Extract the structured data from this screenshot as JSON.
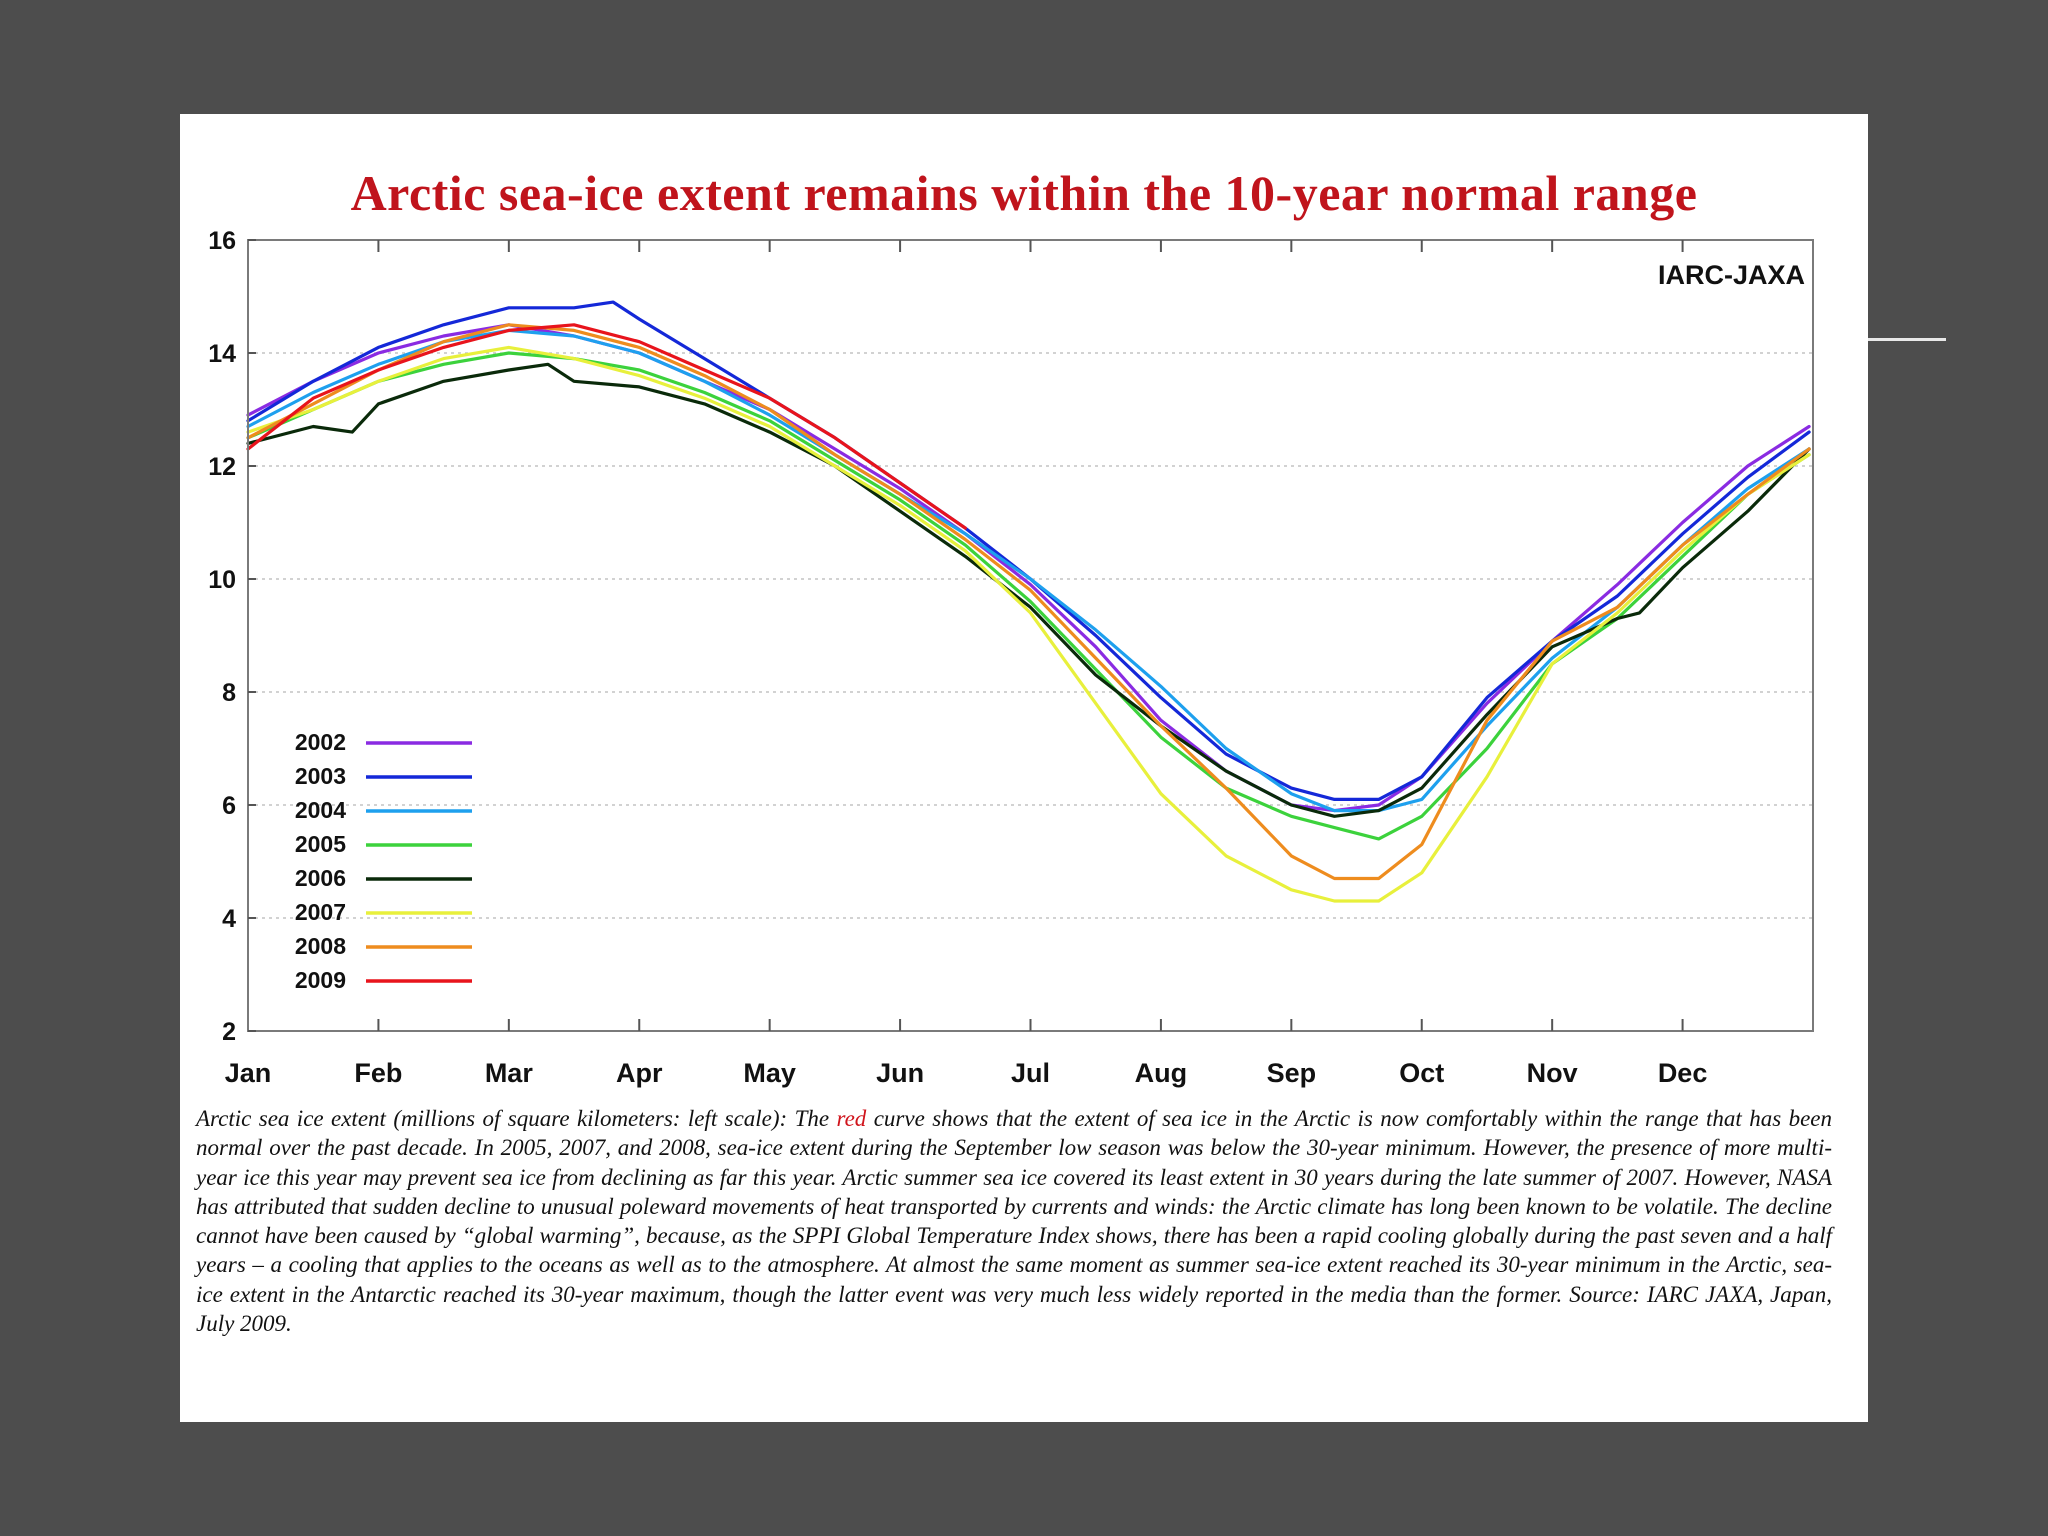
{
  "caption": {
    "part1": "Arctic sea ice extent (millions of square kilometers: left scale): The ",
    "highlight": "red",
    "part2": " curve shows that the extent of sea ice in the Arctic is now comfortably within the range that has been normal over the past decade. In 2005, 2007, and 2008, sea-ice extent during the September low season was below the 30-year minimum. However, the presence of more multi-year ice this year may prevent sea ice from declining as far this year. Arctic summer sea ice covered its least extent in 30 years during the late summer of 2007. However, NASA has attributed that sudden decline to unusual poleward movements of heat transported by currents and winds: the Arctic climate has long been known to be volatile. The decline cannot have been caused by “global warming”, because, as the SPPI Global Temperature Index shows, there has been a rapid cooling globally during the past seven and a half years – a cooling that applies to the oceans as well as to the atmosphere. At almost the same moment as summer sea-ice extent reached its 30-year minimum in the Arctic, sea-ice extent in the Antarctic reached its 30-year maximum, though the latter event was very much less widely reported in the media than the former. Source: IARC JAXA, Japan, July 2009.",
    "highlight_color": "#d0141c"
  },
  "chart_data": {
    "type": "line",
    "title": "Arctic sea-ice extent remains within the 10-year normal range",
    "source_label": "IARC-JAXA",
    "xlabel": "",
    "ylabel": "",
    "ylim": [
      2,
      16
    ],
    "xlim": [
      1,
      13
    ],
    "yticks": [
      2,
      4,
      6,
      8,
      10,
      12,
      14,
      16
    ],
    "months": [
      "Jan",
      "Feb",
      "Mar",
      "Apr",
      "May",
      "Jun",
      "Jul",
      "Aug",
      "Sep",
      "Oct",
      "Nov",
      "Dec"
    ],
    "grid": true,
    "legend_position": "bottom-left",
    "series": [
      {
        "name": "2002",
        "color": "#8a2be2",
        "x": [
          1.0,
          1.5,
          2.0,
          2.5,
          3.0,
          3.5,
          4.0,
          4.5,
          5.0,
          5.5,
          6.0,
          6.5,
          7.0,
          7.5,
          8.0,
          8.5,
          9.0,
          9.33,
          9.67,
          10.0,
          10.5,
          11.0,
          11.5,
          12.0,
          12.5,
          12.97
        ],
        "y": [
          12.9,
          13.5,
          14.0,
          14.3,
          14.5,
          14.3,
          14.0,
          13.5,
          13.0,
          12.3,
          11.6,
          10.8,
          9.9,
          8.8,
          7.5,
          6.6,
          6.0,
          5.9,
          6.0,
          6.5,
          7.8,
          8.9,
          9.9,
          11.0,
          12.0,
          12.7
        ]
      },
      {
        "name": "2003",
        "color": "#1428d8",
        "x": [
          1.0,
          1.5,
          2.0,
          2.5,
          3.0,
          3.5,
          3.8,
          4.0,
          4.5,
          5.0,
          5.5,
          6.0,
          6.5,
          7.0,
          7.5,
          8.0,
          8.5,
          9.0,
          9.33,
          9.67,
          10.0,
          10.5,
          11.0,
          11.5,
          12.0,
          12.5,
          12.97
        ],
        "y": [
          12.8,
          13.5,
          14.1,
          14.5,
          14.8,
          14.8,
          14.9,
          14.6,
          13.9,
          13.2,
          12.5,
          11.7,
          10.9,
          10.0,
          9.0,
          7.9,
          6.9,
          6.3,
          6.1,
          6.1,
          6.5,
          7.9,
          8.9,
          9.7,
          10.8,
          11.8,
          12.6
        ]
      },
      {
        "name": "2004",
        "color": "#1ea0ee",
        "x": [
          1.0,
          1.5,
          2.0,
          2.5,
          3.0,
          3.5,
          4.0,
          4.5,
          5.0,
          5.5,
          6.0,
          6.5,
          7.0,
          7.5,
          8.0,
          8.5,
          9.0,
          9.33,
          9.67,
          10.0,
          10.5,
          11.0,
          11.5,
          12.0,
          12.5,
          12.97
        ],
        "y": [
          12.7,
          13.3,
          13.8,
          14.2,
          14.4,
          14.3,
          14.0,
          13.5,
          12.9,
          12.2,
          11.5,
          10.8,
          10.0,
          9.1,
          8.1,
          7.0,
          6.2,
          5.9,
          5.9,
          6.1,
          7.4,
          8.6,
          9.5,
          10.6,
          11.6,
          12.3
        ]
      },
      {
        "name": "2005",
        "color": "#3cd23c",
        "x": [
          1.0,
          1.5,
          2.0,
          2.5,
          3.0,
          3.5,
          4.0,
          4.5,
          5.0,
          5.5,
          6.0,
          6.5,
          7.0,
          7.5,
          8.0,
          8.5,
          9.0,
          9.33,
          9.67,
          10.0,
          10.5,
          11.0,
          11.5,
          12.0,
          12.5,
          12.97
        ],
        "y": [
          12.5,
          13.0,
          13.5,
          13.8,
          14.0,
          13.9,
          13.7,
          13.3,
          12.8,
          12.1,
          11.4,
          10.6,
          9.6,
          8.4,
          7.2,
          6.3,
          5.8,
          5.6,
          5.4,
          5.8,
          7.0,
          8.5,
          9.3,
          10.4,
          11.5,
          12.2
        ]
      },
      {
        "name": "2006",
        "color": "#0a2a0a",
        "x": [
          1.0,
          1.5,
          1.8,
          2.0,
          2.5,
          3.0,
          3.3,
          3.5,
          4.0,
          4.5,
          5.0,
          5.5,
          6.0,
          6.5,
          7.0,
          7.5,
          8.0,
          8.5,
          9.0,
          9.33,
          9.67,
          10.0,
          10.5,
          11.0,
          11.5,
          11.67,
          12.0,
          12.5,
          12.97
        ],
        "y": [
          12.4,
          12.7,
          12.6,
          13.1,
          13.5,
          13.7,
          13.8,
          13.5,
          13.4,
          13.1,
          12.6,
          12.0,
          11.2,
          10.4,
          9.5,
          8.3,
          7.4,
          6.6,
          6.0,
          5.8,
          5.9,
          6.3,
          7.6,
          8.8,
          9.3,
          9.4,
          10.2,
          11.2,
          12.3
        ]
      },
      {
        "name": "2007",
        "color": "#e8f03c",
        "x": [
          1.0,
          1.5,
          2.0,
          2.5,
          3.0,
          3.5,
          4.0,
          4.5,
          5.0,
          5.5,
          6.0,
          6.5,
          7.0,
          7.5,
          8.0,
          8.5,
          9.0,
          9.33,
          9.67,
          10.0,
          10.5,
          11.0,
          11.5,
          12.0,
          12.5,
          12.97
        ],
        "y": [
          12.6,
          13.0,
          13.5,
          13.9,
          14.1,
          13.9,
          13.6,
          13.2,
          12.7,
          12.0,
          11.3,
          10.5,
          9.4,
          7.8,
          6.2,
          5.1,
          4.5,
          4.3,
          4.3,
          4.8,
          6.5,
          8.5,
          9.4,
          10.5,
          11.5,
          12.2
        ]
      },
      {
        "name": "2008",
        "color": "#ee8c1e",
        "x": [
          1.0,
          1.5,
          2.0,
          2.5,
          3.0,
          3.5,
          4.0,
          4.5,
          5.0,
          5.5,
          6.0,
          6.5,
          7.0,
          7.5,
          8.0,
          8.5,
          9.0,
          9.33,
          9.67,
          10.0,
          10.5,
          11.0,
          11.5,
          12.0,
          12.5,
          12.97
        ],
        "y": [
          12.5,
          13.1,
          13.7,
          14.2,
          14.5,
          14.4,
          14.1,
          13.6,
          13.0,
          12.2,
          11.5,
          10.7,
          9.8,
          8.6,
          7.4,
          6.3,
          5.1,
          4.7,
          4.7,
          5.3,
          7.5,
          8.9,
          9.5,
          10.6,
          11.5,
          12.3
        ]
      },
      {
        "name": "2009",
        "color": "#e8141c",
        "x": [
          1.0,
          1.5,
          2.0,
          2.5,
          3.0,
          3.5,
          4.0,
          4.5,
          5.0,
          5.5,
          6.0,
          6.5
        ],
        "y": [
          12.3,
          13.2,
          13.7,
          14.1,
          14.4,
          14.5,
          14.2,
          13.7,
          13.2,
          12.5,
          11.7,
          10.9
        ]
      }
    ]
  }
}
